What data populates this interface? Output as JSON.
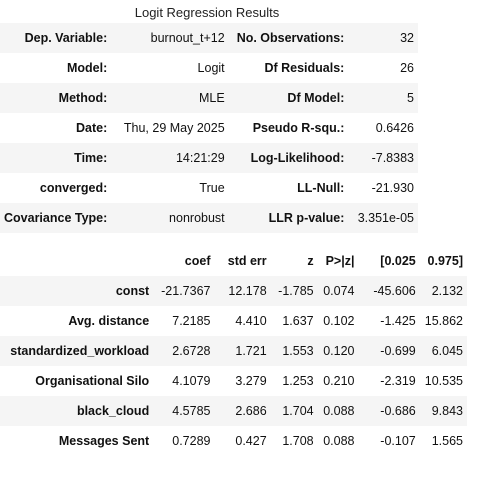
{
  "title": "Logit Regression Results",
  "summary": {
    "rows": [
      {
        "l1": "Dep. Variable:",
        "v1": "burnout_t+12",
        "l2": "No. Observations:",
        "v2": "32"
      },
      {
        "l1": "Model:",
        "v1": "Logit",
        "l2": "Df Residuals:",
        "v2": "26"
      },
      {
        "l1": "Method:",
        "v1": "MLE",
        "l2": "Df Model:",
        "v2": "5"
      },
      {
        "l1": "Date:",
        "v1": "Thu, 29 May 2025",
        "l2": "Pseudo R-squ.:",
        "v2": "0.6426"
      },
      {
        "l1": "Time:",
        "v1": "14:21:29",
        "l2": "Log-Likelihood:",
        "v2": "-7.8383"
      },
      {
        "l1": "converged:",
        "v1": "True",
        "l2": "LL-Null:",
        "v2": "-21.930"
      },
      {
        "l1": "Covariance Type:",
        "v1": "nonrobust",
        "l2": "LLR p-value:",
        "v2": "3.351e-05"
      }
    ]
  },
  "coef_table": {
    "headers": [
      "",
      "coef",
      "std err",
      "z",
      "P>|z|",
      "[0.025",
      "0.975]"
    ],
    "rows": [
      [
        "const",
        "-21.7367",
        "12.178",
        "-1.785",
        "0.074",
        "-45.606",
        "2.132"
      ],
      [
        "Avg. distance",
        "7.2185",
        "4.410",
        "1.637",
        "0.102",
        "-1.425",
        "15.862"
      ],
      [
        "standardized_workload",
        "2.6728",
        "1.721",
        "1.553",
        "0.120",
        "-0.699",
        "6.045"
      ],
      [
        "Organisational Silo",
        "4.1079",
        "3.279",
        "1.253",
        "0.210",
        "-2.319",
        "10.535"
      ],
      [
        "black_cloud",
        "4.5785",
        "2.686",
        "1.704",
        "0.088",
        "-0.686",
        "9.843"
      ],
      [
        "Messages Sent",
        "0.7289",
        "0.427",
        "1.708",
        "0.088",
        "-0.107",
        "1.565"
      ]
    ]
  }
}
